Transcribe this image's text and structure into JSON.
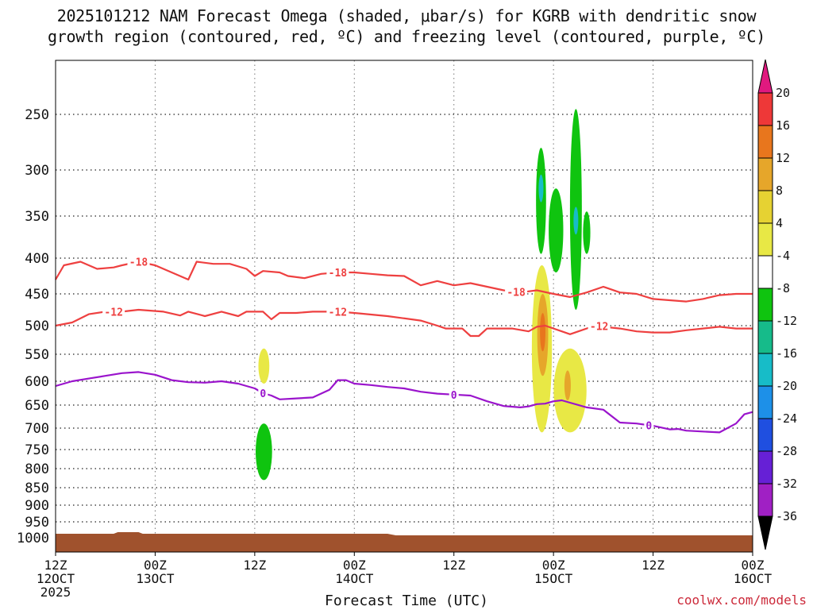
{
  "title_line1": "2025101212 NAM Forecast Omega (shaded, μbar/s) for KGRB with dendritic snow",
  "title_line2": "growth region (contoured, red, ºC) and freezing level (contoured, purple, ºC)",
  "credit": "coolwx.com/models",
  "chart_data": {
    "type": "contour-timeheight",
    "xlabel": "Forecast Time (UTC)",
    "x_range_hours": [
      0,
      84
    ],
    "x_ticks": [
      {
        "h": 0,
        "l1": "12Z",
        "l2": "12OCT",
        "l3": "2025"
      },
      {
        "h": 12,
        "l1": "00Z",
        "l2": "13OCT",
        "l3": ""
      },
      {
        "h": 24,
        "l1": "12Z",
        "l2": "",
        "l3": ""
      },
      {
        "h": 36,
        "l1": "00Z",
        "l2": "14OCT",
        "l3": ""
      },
      {
        "h": 48,
        "l1": "12Z",
        "l2": "",
        "l3": ""
      },
      {
        "h": 60,
        "l1": "00Z",
        "l2": "15OCT",
        "l3": ""
      },
      {
        "h": 72,
        "l1": "12Z",
        "l2": "",
        "l3": ""
      },
      {
        "h": 84,
        "l1": "00Z",
        "l2": "16OCT",
        "l3": ""
      }
    ],
    "y_ticks": [
      250,
      300,
      350,
      400,
      450,
      500,
      550,
      600,
      650,
      700,
      750,
      800,
      850,
      900,
      950,
      1000
    ],
    "colorbar": {
      "labels": [
        "20",
        "16",
        "12",
        "8",
        "4",
        "-4",
        "-8",
        "-12",
        "-16",
        "-20",
        "-24",
        "-28",
        "-32",
        "-36"
      ],
      "top_color": "#e0197f",
      "bottom_color": "#000000",
      "colors": [
        "#ee3838",
        "#e8761d",
        "#e6a62a",
        "#e6d232",
        "#e8e845",
        "#ffffff",
        "#0fc40f",
        "#16bb8a",
        "#17bcc8",
        "#1d90e8",
        "#1f4fe0",
        "#6620d6",
        "#a020c4",
        "#a9a9a9"
      ]
    },
    "contours": [
      {
        "name": "-18C isotherm",
        "color": "#ee4040",
        "points": [
          [
            0,
            430
          ],
          [
            1,
            410
          ],
          [
            3,
            405
          ],
          [
            5,
            415
          ],
          [
            7,
            413
          ],
          [
            8,
            410
          ],
          [
            10,
            405
          ],
          [
            12,
            410
          ],
          [
            14,
            420
          ],
          [
            16,
            430
          ],
          [
            17,
            405
          ],
          [
            19,
            408
          ],
          [
            21,
            408
          ],
          [
            23,
            415
          ],
          [
            24,
            425
          ],
          [
            25,
            418
          ],
          [
            27,
            420
          ],
          [
            28,
            425
          ],
          [
            30,
            428
          ],
          [
            32,
            422
          ],
          [
            34,
            420
          ],
          [
            36,
            420
          ],
          [
            38,
            422
          ],
          [
            40,
            424
          ],
          [
            42,
            425
          ],
          [
            44,
            438
          ],
          [
            46,
            432
          ],
          [
            48,
            438
          ],
          [
            50,
            435
          ],
          [
            52,
            440
          ],
          [
            54,
            445
          ],
          [
            56,
            448
          ],
          [
            58,
            445
          ],
          [
            60,
            450
          ],
          [
            62,
            455
          ],
          [
            64,
            448
          ],
          [
            66,
            440
          ],
          [
            68,
            448
          ],
          [
            70,
            450
          ],
          [
            72,
            458
          ],
          [
            74,
            460
          ],
          [
            76,
            462
          ],
          [
            78,
            458
          ],
          [
            80,
            452
          ],
          [
            82,
            450
          ],
          [
            84,
            450
          ]
        ],
        "labels": [
          {
            "h": 10,
            "t": "-18"
          },
          {
            "h": 34,
            "t": "-18"
          },
          {
            "h": 55.5,
            "t": "-18"
          }
        ]
      },
      {
        "name": "-12C isotherm",
        "color": "#ee4040",
        "points": [
          [
            0,
            500
          ],
          [
            2,
            495
          ],
          [
            4,
            482
          ],
          [
            6,
            478
          ],
          [
            8,
            478
          ],
          [
            10,
            475
          ],
          [
            13,
            478
          ],
          [
            15,
            484
          ],
          [
            16,
            478
          ],
          [
            18,
            485
          ],
          [
            20,
            478
          ],
          [
            22,
            485
          ],
          [
            23,
            478
          ],
          [
            25,
            478
          ],
          [
            26,
            490
          ],
          [
            27,
            480
          ],
          [
            29,
            480
          ],
          [
            31,
            478
          ],
          [
            34,
            478
          ],
          [
            36,
            480
          ],
          [
            40,
            485
          ],
          [
            44,
            492
          ],
          [
            46,
            500
          ],
          [
            47,
            505
          ],
          [
            49,
            505
          ],
          [
            50,
            518
          ],
          [
            51,
            518
          ],
          [
            52,
            505
          ],
          [
            53,
            505
          ],
          [
            55,
            505
          ],
          [
            57,
            510
          ],
          [
            58,
            502
          ],
          [
            59,
            500
          ],
          [
            61,
            510
          ],
          [
            62,
            515
          ],
          [
            63,
            510
          ],
          [
            65,
            500
          ],
          [
            66,
            502
          ],
          [
            68,
            505
          ],
          [
            70,
            510
          ],
          [
            72,
            512
          ],
          [
            74,
            512
          ],
          [
            76,
            508
          ],
          [
            78,
            505
          ],
          [
            80,
            502
          ],
          [
            82,
            505
          ],
          [
            84,
            505
          ]
        ],
        "labels": [
          {
            "h": 7,
            "t": "-12"
          },
          {
            "h": 34,
            "t": "-12"
          },
          {
            "h": 65.5,
            "t": "-12"
          }
        ]
      },
      {
        "name": "0C freezing level",
        "color": "#9a14cc",
        "points": [
          [
            0,
            610
          ],
          [
            2,
            600
          ],
          [
            4,
            595
          ],
          [
            6,
            590
          ],
          [
            8,
            585
          ],
          [
            10,
            583
          ],
          [
            12,
            588
          ],
          [
            14,
            598
          ],
          [
            16,
            602
          ],
          [
            18,
            603
          ],
          [
            20,
            600
          ],
          [
            22,
            605
          ],
          [
            24,
            615
          ],
          [
            25,
            625
          ],
          [
            26,
            630
          ],
          [
            27,
            638
          ],
          [
            29,
            636
          ],
          [
            31,
            634
          ],
          [
            33,
            618
          ],
          [
            34,
            598
          ],
          [
            35,
            598
          ],
          [
            36,
            605
          ],
          [
            38,
            608
          ],
          [
            40,
            612
          ],
          [
            42,
            615
          ],
          [
            44,
            622
          ],
          [
            46,
            626
          ],
          [
            48,
            628
          ],
          [
            50,
            630
          ],
          [
            52,
            642
          ],
          [
            54,
            652
          ],
          [
            56,
            655
          ],
          [
            57,
            653
          ],
          [
            58,
            648
          ],
          [
            59,
            647
          ],
          [
            60,
            642
          ],
          [
            61,
            640
          ],
          [
            62,
            645
          ],
          [
            64,
            655
          ],
          [
            66,
            660
          ],
          [
            68,
            688
          ],
          [
            70,
            690
          ],
          [
            72,
            695
          ],
          [
            74,
            703
          ],
          [
            75,
            702
          ],
          [
            76,
            706
          ],
          [
            78,
            708
          ],
          [
            80,
            710
          ],
          [
            82,
            690
          ],
          [
            83,
            670
          ],
          [
            84,
            665
          ]
        ],
        "labels": [
          {
            "h": 25,
            "t": "0"
          },
          {
            "h": 48,
            "t": "0"
          },
          {
            "h": 71.5,
            "t": "0"
          }
        ]
      }
    ],
    "omega_regions": [
      {
        "color": "#0fc40f",
        "h": 58.5,
        "p0": 280,
        "p1": 395,
        "w": 0.55
      },
      {
        "color": "#0fc40f",
        "h": 60.3,
        "p0": 320,
        "p1": 420,
        "w": 0.8
      },
      {
        "color": "#0fc40f",
        "h": 62.7,
        "p0": 245,
        "p1": 475,
        "w": 0.65
      },
      {
        "color": "#0fc40f",
        "h": 64.0,
        "p0": 345,
        "p1": 395,
        "w": 0.4
      },
      {
        "color": "#17bcc8",
        "h": 62.7,
        "p0": 340,
        "p1": 372,
        "w": 0.2
      },
      {
        "color": "#17bcc8",
        "h": 58.5,
        "p0": 305,
        "p1": 335,
        "w": 0.15
      },
      {
        "color": "#0fc40f",
        "h": 25.1,
        "p0": 690,
        "p1": 830,
        "w": 0.9
      },
      {
        "color": "#e8e845",
        "h": 25.1,
        "p0": 540,
        "p1": 605,
        "w": 0.6
      },
      {
        "color": "#e8e845",
        "h": 58.6,
        "p0": 410,
        "p1": 710,
        "w": 1.1
      },
      {
        "color": "#e6a62a",
        "h": 58.7,
        "p0": 450,
        "p1": 590,
        "w": 0.6
      },
      {
        "color": "#e8761d",
        "h": 58.7,
        "p0": 480,
        "p1": 545,
        "w": 0.3
      },
      {
        "color": "#e8e845",
        "h": 62.0,
        "p0": 540,
        "p1": 710,
        "w": 1.8
      },
      {
        "color": "#e6a62a",
        "h": 61.7,
        "p0": 580,
        "p1": 640,
        "w": 0.35
      }
    ]
  }
}
